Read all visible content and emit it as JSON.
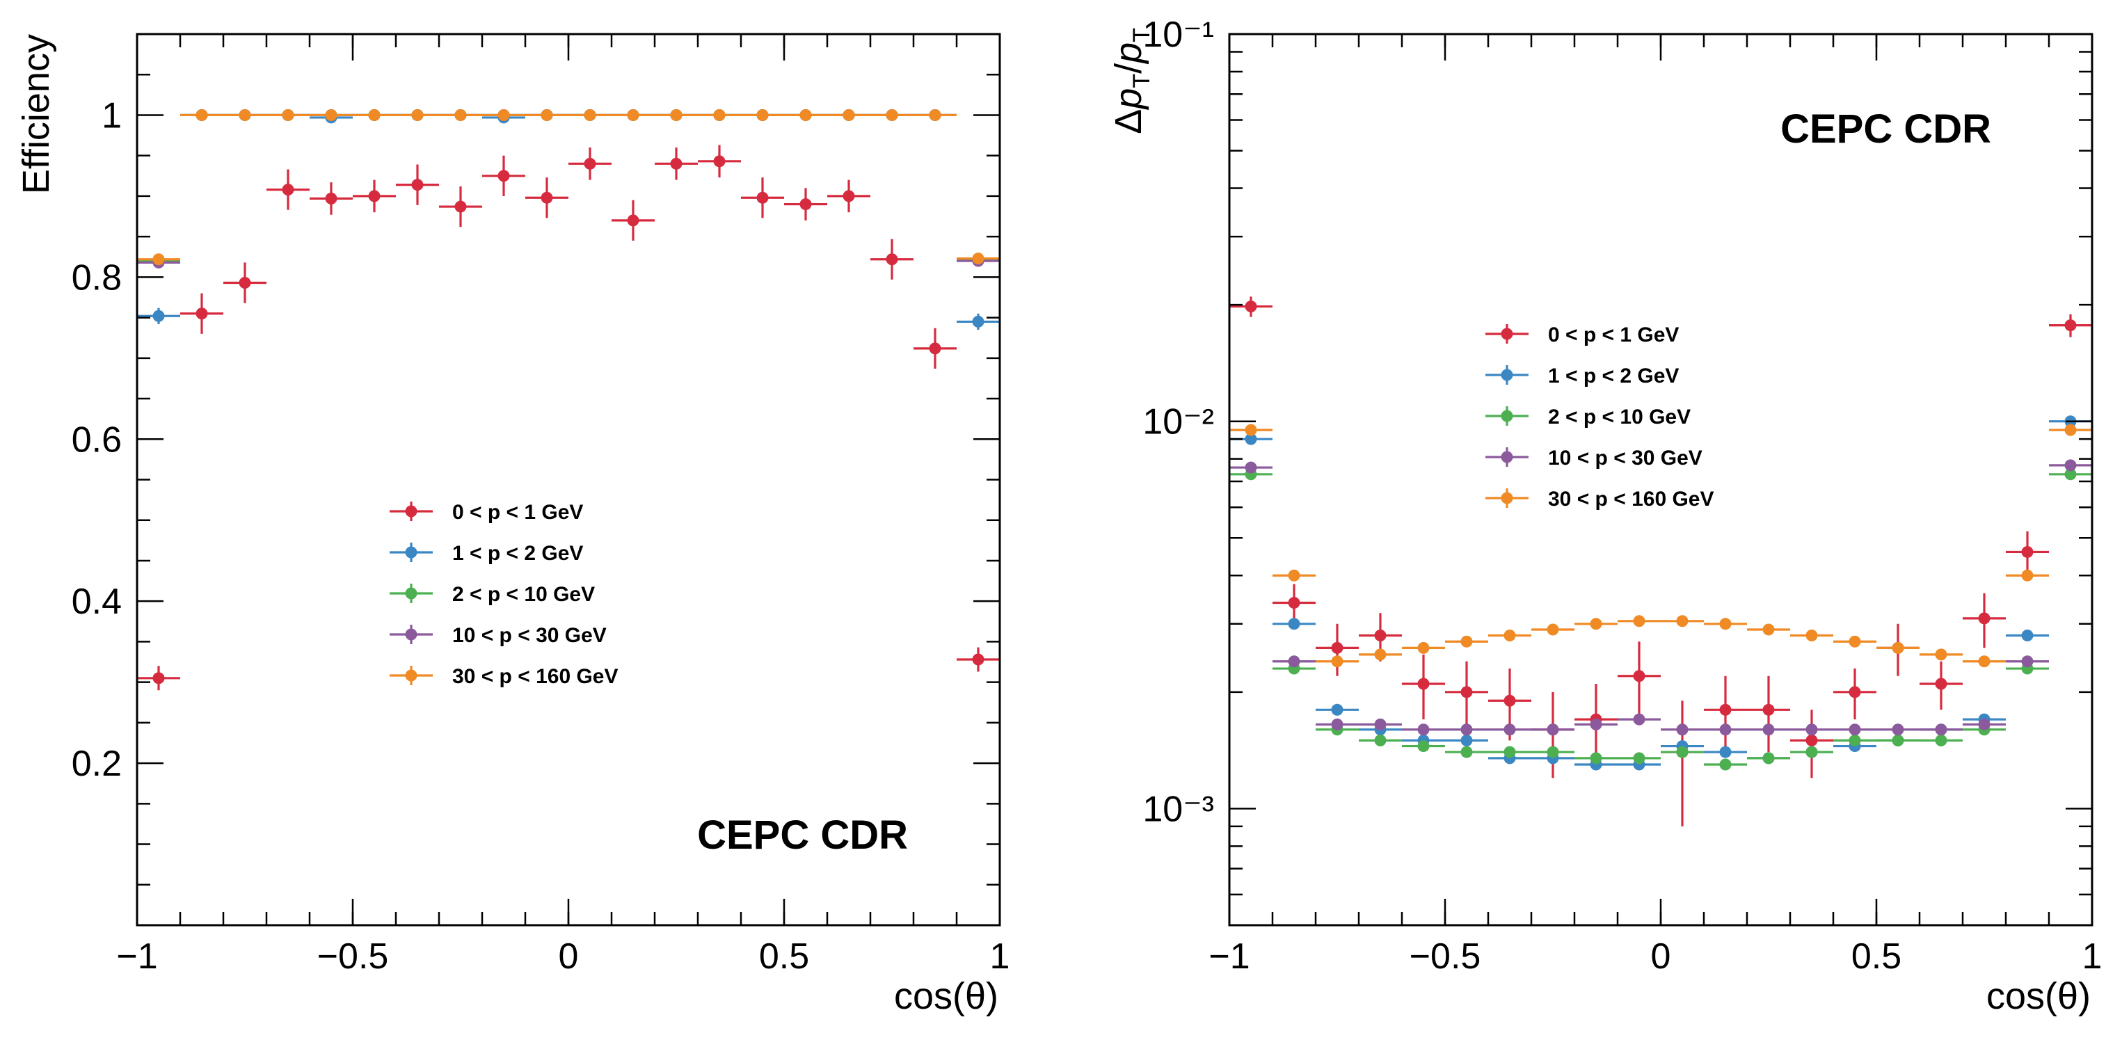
{
  "chart_data": [
    {
      "type": "scatter",
      "xlabel": "cos(θ)",
      "ylabel": "Efficiency",
      "xlim": [
        -1,
        1
      ],
      "ylim": [
        0,
        1.1
      ],
      "yscale": "linear",
      "xticks": [
        -1,
        -0.5,
        0,
        0.5,
        1
      ],
      "xtick_labels": [
        "−1",
        "−0.5",
        "0",
        "0.5",
        "1"
      ],
      "yticks": [
        0.2,
        0.4,
        0.6,
        0.8,
        1
      ],
      "ytick_labels": [
        "0.2",
        "0.4",
        "0.6",
        "0.8",
        "1"
      ],
      "annotation": "CEPC CDR",
      "legend_position": "center-left",
      "grid": false,
      "x": [
        -0.95,
        -0.85,
        -0.75,
        -0.65,
        -0.55,
        -0.45,
        -0.35,
        -0.25,
        -0.15,
        -0.05,
        0.05,
        0.15,
        0.25,
        0.35,
        0.45,
        0.55,
        0.65,
        0.75,
        0.85,
        0.95
      ],
      "series": [
        {
          "name": "0 < p < 1 GeV",
          "color": "#d62b3f",
          "values": [
            0.305,
            0.755,
            0.793,
            0.908,
            0.897,
            0.9,
            0.914,
            0.887,
            0.925,
            0.898,
            0.94,
            0.87,
            0.94,
            0.943,
            0.898,
            0.89,
            0.9,
            0.822,
            0.712,
            0.328
          ],
          "errors": [
            0.015,
            0.025,
            0.025,
            0.025,
            0.02,
            0.02,
            0.025,
            0.025,
            0.025,
            0.025,
            0.02,
            0.025,
            0.02,
            0.02,
            0.025,
            0.02,
            0.02,
            0.025,
            0.025,
            0.015
          ]
        },
        {
          "name": "1 < p < 2 GeV",
          "color": "#3b87c4",
          "values": [
            0.752,
            1.0,
            1.0,
            1.0,
            0.997,
            1.0,
            1.0,
            1.0,
            0.997,
            1.0,
            1.0,
            1.0,
            1.0,
            1.0,
            1.0,
            1.0,
            1.0,
            1.0,
            1.0,
            0.745
          ],
          "errors": [
            0.01,
            0,
            0,
            0,
            0,
            0,
            0,
            0,
            0,
            0,
            0,
            0,
            0,
            0,
            0,
            0,
            0,
            0,
            0,
            0.01
          ]
        },
        {
          "name": "2 < p < 10 GeV",
          "color": "#4caf50",
          "values": [
            0.82,
            1.0,
            1.0,
            1.0,
            1.0,
            1.0,
            1.0,
            1.0,
            1.0,
            1.0,
            1.0,
            1.0,
            1.0,
            1.0,
            1.0,
            1.0,
            1.0,
            1.0,
            1.0,
            0.822
          ],
          "errors": [
            0,
            0,
            0,
            0,
            0,
            0,
            0,
            0,
            0,
            0,
            0,
            0,
            0,
            0,
            0,
            0,
            0,
            0,
            0,
            0
          ]
        },
        {
          "name": "10 < p < 30 GeV",
          "color": "#8a5a9c",
          "values": [
            0.818,
            1.0,
            1.0,
            1.0,
            1.0,
            1.0,
            1.0,
            1.0,
            1.0,
            1.0,
            1.0,
            1.0,
            1.0,
            1.0,
            1.0,
            1.0,
            1.0,
            1.0,
            1.0,
            0.82
          ],
          "errors": [
            0,
            0,
            0,
            0,
            0,
            0,
            0,
            0,
            0,
            0,
            0,
            0,
            0,
            0,
            0,
            0,
            0,
            0,
            0,
            0
          ]
        },
        {
          "name": "30 < p < 160 GeV",
          "color": "#f08a24",
          "values": [
            0.822,
            1.0,
            1.0,
            1.0,
            1.0,
            1.0,
            1.0,
            1.0,
            1.0,
            1.0,
            1.0,
            1.0,
            1.0,
            1.0,
            1.0,
            1.0,
            1.0,
            1.0,
            1.0,
            0.823
          ],
          "errors": [
            0,
            0,
            0,
            0,
            0,
            0,
            0,
            0,
            0,
            0,
            0,
            0,
            0,
            0,
            0,
            0,
            0,
            0,
            0,
            0
          ]
        }
      ]
    },
    {
      "type": "scatter",
      "xlabel": "cos(θ)",
      "ylabel": "Δp_T/p_T",
      "xlim": [
        -1,
        1
      ],
      "ylim": [
        0.0005,
        0.1
      ],
      "yscale": "log",
      "xticks": [
        -1,
        -0.5,
        0,
        0.5,
        1
      ],
      "xtick_labels": [
        "−1",
        "−0.5",
        "0",
        "0.5",
        "1"
      ],
      "yticks": [
        0.001,
        0.01,
        0.1
      ],
      "ytick_labels": [
        "10⁻³",
        "10⁻²",
        "10⁻¹"
      ],
      "annotation": "CEPC CDR",
      "legend_position": "center",
      "grid": false,
      "x": [
        -0.95,
        -0.85,
        -0.75,
        -0.65,
        -0.55,
        -0.45,
        -0.35,
        -0.25,
        -0.15,
        -0.05,
        0.05,
        0.15,
        0.25,
        0.35,
        0.45,
        0.55,
        0.65,
        0.75,
        0.85,
        0.95
      ],
      "series": [
        {
          "name": "0 < p < 1 GeV",
          "color": "#d62b3f",
          "values": [
            0.0198,
            0.0034,
            0.0026,
            0.0028,
            0.0021,
            0.002,
            0.0019,
            0.0016,
            0.0017,
            0.0022,
            0.0014,
            0.0018,
            0.0018,
            0.0015,
            0.002,
            0.0026,
            0.0021,
            0.0031,
            0.0046,
            0.0177
          ],
          "errors": [
            0.0012,
            0.0004,
            0.0004,
            0.0004,
            0.0004,
            0.0004,
            0.0004,
            0.0004,
            0.0004,
            0.0005,
            0.0005,
            0.0004,
            0.0004,
            0.0003,
            0.0003,
            0.0004,
            0.0003,
            0.0005,
            0.0006,
            0.0012
          ]
        },
        {
          "name": "1 < p < 2 GeV",
          "color": "#3b87c4",
          "values": [
            0.009,
            0.003,
            0.0018,
            0.0016,
            0.0015,
            0.0015,
            0.00135,
            0.00135,
            0.0013,
            0.0013,
            0.00145,
            0.0014,
            0.00135,
            0.0014,
            0.00145,
            0.0015,
            0.0016,
            0.0017,
            0.0028,
            0.01
          ],
          "errors": [
            0,
            0,
            0,
            0,
            0,
            0,
            0,
            0,
            0,
            0,
            0,
            0,
            0,
            0,
            0,
            0,
            0,
            0,
            0,
            0
          ]
        },
        {
          "name": "2 < p < 10 GeV",
          "color": "#4caf50",
          "values": [
            0.0073,
            0.0023,
            0.0016,
            0.0015,
            0.00145,
            0.0014,
            0.0014,
            0.0014,
            0.00135,
            0.00135,
            0.0014,
            0.0013,
            0.00135,
            0.0014,
            0.0015,
            0.0015,
            0.0015,
            0.0016,
            0.0023,
            0.0073
          ],
          "errors": [
            0,
            0,
            0,
            0,
            0,
            0,
            0,
            0,
            0,
            0,
            0,
            0,
            0,
            0,
            0,
            0,
            0,
            0,
            0,
            0
          ]
        },
        {
          "name": "10 < p < 30 GeV",
          "color": "#8a5a9c",
          "values": [
            0.0076,
            0.0024,
            0.00165,
            0.00165,
            0.0016,
            0.0016,
            0.0016,
            0.0016,
            0.00165,
            0.0017,
            0.0016,
            0.0016,
            0.0016,
            0.0016,
            0.0016,
            0.0016,
            0.0016,
            0.00165,
            0.0024,
            0.0077
          ],
          "errors": [
            0,
            0,
            0,
            0,
            0,
            0,
            0,
            0,
            0,
            0,
            0,
            0,
            0,
            0,
            0,
            0,
            0,
            0,
            0,
            0
          ]
        },
        {
          "name": "30 < p < 160 GeV",
          "color": "#f08a24",
          "values": [
            0.0095,
            0.004,
            0.0024,
            0.0025,
            0.0026,
            0.0027,
            0.0028,
            0.0029,
            0.003,
            0.00305,
            0.00305,
            0.003,
            0.0029,
            0.0028,
            0.0027,
            0.0026,
            0.0025,
            0.0024,
            0.004,
            0.0095
          ],
          "errors": [
            0,
            0,
            0,
            0,
            0,
            0,
            0,
            0,
            0,
            0,
            0,
            0,
            0,
            0,
            0,
            0,
            0,
            0,
            0,
            0
          ]
        }
      ]
    }
  ]
}
